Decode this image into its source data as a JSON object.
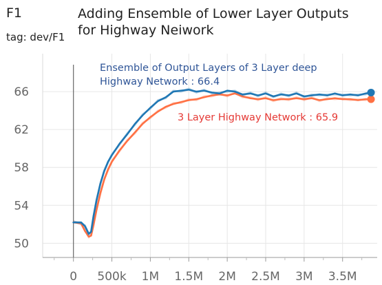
{
  "header": {
    "metric": "F1",
    "tag": "tag: dev/F1",
    "title_line1": "Adding Ensemble of Lower Layer Outputs",
    "title_line2": "for Highway Neiwork"
  },
  "chart_data": {
    "type": "line",
    "title": "Adding Ensemble of Lower Layer Outputs for Highway Neiwork",
    "xlabel": "",
    "ylabel": "",
    "xlim": [
      -400000,
      3950000
    ],
    "ylim": [
      48.5,
      70
    ],
    "xticks": [
      0,
      500000,
      1000000,
      1500000,
      2000000,
      2500000,
      3000000,
      3500000
    ],
    "xtick_labels": [
      "0",
      "500k",
      "1M",
      "1.5M",
      "2M",
      "2.5M",
      "3M",
      "3.5M"
    ],
    "yticks": [
      50,
      54,
      58,
      62,
      66
    ],
    "ytick_labels": [
      "50",
      "54",
      "58",
      "62",
      "66"
    ],
    "grid": true,
    "series": [
      {
        "color": "#1f77b4",
        "x": [
          0,
          100000,
          150000,
          200000,
          230000,
          260000,
          300000,
          350000,
          400000,
          450000,
          500000,
          600000,
          700000,
          800000,
          900000,
          1000000,
          1100000,
          1200000,
          1300000,
          1400000,
          1500000,
          1600000,
          1700000,
          1800000,
          1900000,
          2000000,
          2100000,
          2200000,
          2300000,
          2400000,
          2500000,
          2600000,
          2700000,
          2800000,
          2900000,
          3000000,
          3100000,
          3200000,
          3300000,
          3400000,
          3500000,
          3600000,
          3700000,
          3800000,
          3870000
        ],
        "y": [
          52.2,
          52.2,
          51.8,
          51.0,
          51.2,
          52.8,
          54.5,
          56.3,
          57.6,
          58.6,
          59.3,
          60.5,
          61.5,
          62.6,
          63.5,
          64.3,
          65.0,
          65.4,
          66.0,
          66.1,
          66.2,
          66.0,
          66.1,
          65.9,
          65.8,
          66.1,
          66.0,
          65.7,
          65.8,
          65.6,
          65.8,
          65.5,
          65.7,
          65.6,
          65.8,
          65.5,
          65.6,
          65.7,
          65.6,
          65.8,
          65.6,
          65.7,
          65.6,
          65.8,
          65.9
        ],
        "end_label": "Ensemble of Output Layers of 3 Layer deep Highway Network : 66.4",
        "end_label_line1": "Ensemble of Output Layers of 3 Layer deep",
        "end_label_line2": "Highway Network : 66.4"
      },
      {
        "color": "#ff7043",
        "x": [
          0,
          100000,
          150000,
          200000,
          230000,
          260000,
          300000,
          350000,
          400000,
          450000,
          500000,
          600000,
          700000,
          800000,
          900000,
          1000000,
          1100000,
          1200000,
          1300000,
          1400000,
          1500000,
          1600000,
          1700000,
          1800000,
          1900000,
          2000000,
          2100000,
          2200000,
          2300000,
          2400000,
          2500000,
          2600000,
          2700000,
          2800000,
          2900000,
          3000000,
          3100000,
          3200000,
          3300000,
          3400000,
          3500000,
          3600000,
          3700000,
          3800000,
          3870000
        ],
        "y": [
          52.2,
          52.1,
          51.3,
          50.7,
          50.8,
          51.9,
          53.5,
          55.3,
          56.7,
          57.8,
          58.6,
          59.8,
          60.8,
          61.7,
          62.6,
          63.3,
          63.9,
          64.4,
          64.7,
          64.9,
          65.1,
          65.2,
          65.4,
          65.6,
          65.7,
          65.6,
          65.8,
          65.5,
          65.3,
          65.2,
          65.3,
          65.1,
          65.2,
          65.2,
          65.3,
          65.2,
          65.3,
          65.1,
          65.2,
          65.3,
          65.2,
          65.2,
          65.1,
          65.2,
          65.2
        ],
        "end_label": "3 Layer Highway Network : 65.9"
      }
    ]
  }
}
